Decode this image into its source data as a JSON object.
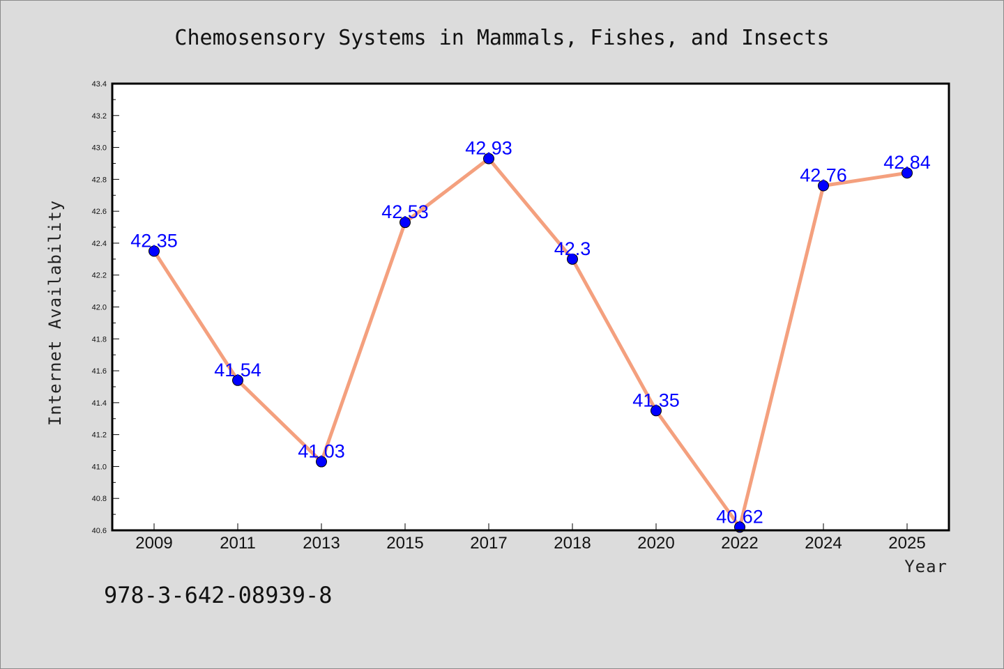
{
  "chart_data": {
    "type": "line",
    "title": "Chemosensory Systems in Mammals, Fishes, and Insects",
    "xlabel": "Year",
    "ylabel": "Internet Availability",
    "categories": [
      "2009",
      "2011",
      "2013",
      "2015",
      "2017",
      "2018",
      "2020",
      "2022",
      "2024",
      "2025"
    ],
    "values": [
      42.35,
      41.54,
      41.03,
      42.53,
      42.93,
      42.3,
      41.35,
      40.62,
      42.76,
      42.84
    ],
    "data_labels": [
      "42.35",
      "41.54",
      "41.03",
      "42.53",
      "42.93",
      "42.3",
      "41.35",
      "40.62",
      "42.76",
      "42.84"
    ],
    "ylim": [
      40.6,
      43.4
    ],
    "yticks": [
      "40.6",
      "40.8",
      "41.0",
      "41.2",
      "41.4",
      "41.6",
      "41.8",
      "42.0",
      "42.2",
      "42.4",
      "42.6",
      "42.8",
      "43.0",
      "43.2",
      "43.4"
    ],
    "grid": false,
    "line_color": "#f4a07e",
    "marker_color": "#0000ff",
    "label_color": "#0000ff"
  },
  "annotation": "978-3-642-08939-8"
}
